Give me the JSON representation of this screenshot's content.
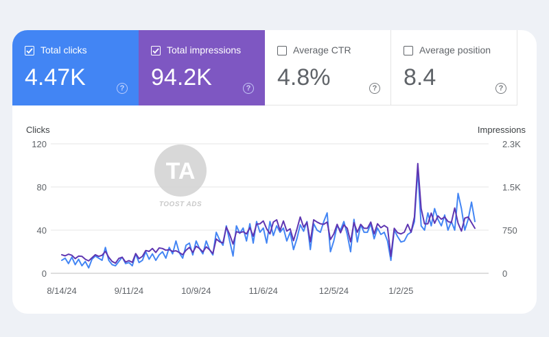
{
  "metrics": [
    {
      "label": "Total clicks",
      "value": "4.47K",
      "checked": true,
      "color": "#4285f4"
    },
    {
      "label": "Total impressions",
      "value": "94.2K",
      "checked": true,
      "color": "#7e57c2"
    },
    {
      "label": "Average CTR",
      "value": "4.8%",
      "checked": false
    },
    {
      "label": "Average position",
      "value": "8.4",
      "checked": false
    }
  ],
  "help_glyph": "?",
  "watermark": {
    "text": "TOOST ADS",
    "logo": "TA"
  },
  "chart_data": {
    "type": "line",
    "title": "",
    "ylabel": "Clicks",
    "y2label": "Impressions",
    "ylim": [
      0,
      120
    ],
    "y2lim": [
      0,
      2300
    ],
    "yticks": [
      "0",
      "40",
      "80",
      "120"
    ],
    "y2ticks": [
      "0",
      "750",
      "1.5K",
      "2.3K"
    ],
    "xticks": [
      "8/14/24",
      "9/11/24",
      "10/9/24",
      "11/6/24",
      "12/5/24",
      "1/2/25"
    ],
    "x_start": "8/14/24",
    "x_end": "1/10/25",
    "series": [
      {
        "name": "Clicks",
        "axis": "left",
        "color": "#4285f4",
        "values": [
          12,
          14,
          9,
          15,
          8,
          13,
          7,
          11,
          5,
          13,
          16,
          14,
          12,
          24,
          12,
          8,
          7,
          11,
          15,
          9,
          10,
          7,
          18,
          10,
          12,
          20,
          13,
          18,
          12,
          17,
          20,
          14,
          24,
          18,
          30,
          19,
          14,
          26,
          28,
          17,
          30,
          23,
          18,
          30,
          22,
          17,
          38,
          31,
          26,
          44,
          30,
          16,
          44,
          37,
          42,
          30,
          46,
          28,
          48,
          38,
          42,
          28,
          48,
          35,
          44,
          38,
          42,
          30,
          38,
          22,
          32,
          45,
          39,
          48,
          22,
          46,
          40,
          38,
          48,
          56,
          20,
          30,
          44,
          40,
          48,
          36,
          20,
          50,
          29,
          45,
          38,
          38,
          46,
          32,
          42,
          36,
          38,
          30,
          12,
          40,
          34,
          29,
          30,
          36,
          38,
          48,
          96,
          44,
          40,
          56,
          44,
          60,
          50,
          44,
          54,
          40,
          48,
          40,
          74,
          60,
          40,
          50,
          66,
          48
        ]
      },
      {
        "name": "Impressions",
        "axis": "right",
        "color": "#5e35b1",
        "values": [
          330,
          310,
          340,
          320,
          260,
          305,
          300,
          250,
          220,
          275,
          330,
          300,
          320,
          390,
          285,
          210,
          180,
          265,
          285,
          200,
          225,
          195,
          350,
          260,
          300,
          405,
          390,
          440,
          370,
          450,
          440,
          410,
          420,
          390,
          400,
          370,
          330,
          410,
          460,
          370,
          480,
          440,
          380,
          470,
          420,
          350,
          610,
          560,
          540,
          820,
          690,
          520,
          740,
          720,
          740,
          700,
          810,
          660,
          875,
          880,
          930,
          790,
          700,
          910,
          950,
          760,
          930,
          750,
          790,
          580,
          780,
          1000,
          820,
          905,
          560,
          950,
          910,
          880,
          870,
          910,
          600,
          700,
          870,
          720,
          860,
          800,
          560,
          900,
          730,
          870,
          800,
          800,
          910,
          700,
          880,
          810,
          850,
          810,
          300,
          800,
          720,
          700,
          730,
          870,
          730,
          1000,
          1950,
          1150,
          880,
          880,
          1070,
          890,
          1020,
          960,
          1000,
          920,
          900,
          1160,
          890,
          750,
          980,
          1000,
          900,
          800
        ]
      }
    ]
  }
}
